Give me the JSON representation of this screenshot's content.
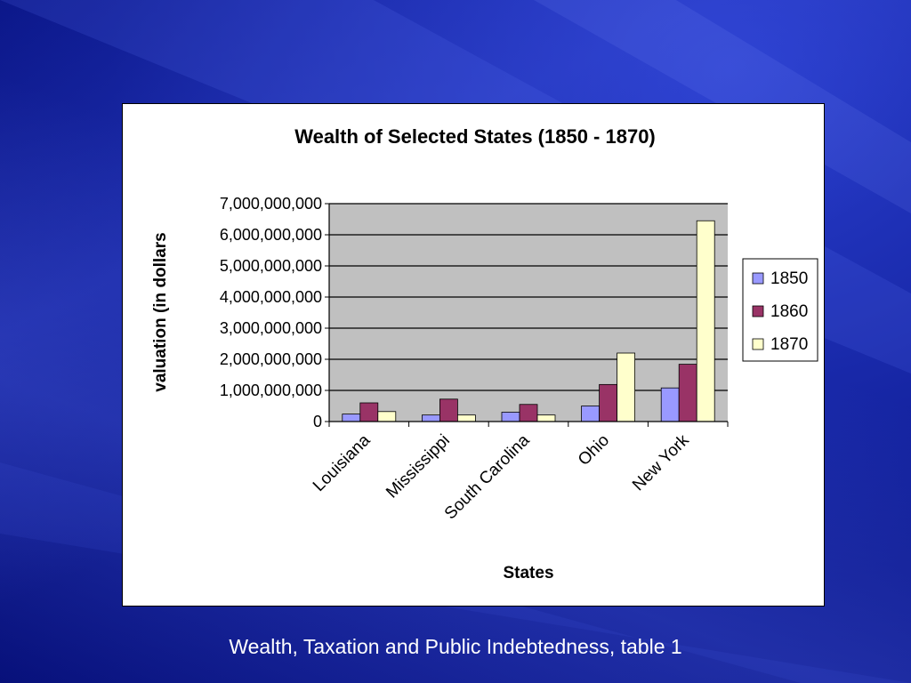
{
  "colors": {
    "background": "#0b1a8c",
    "plot_area": "#c0c0c0",
    "series_1850": "#9999ff",
    "series_1860": "#993366",
    "series_1870": "#ffffcc"
  },
  "caption": "Wealth, Taxation and Public Indebtedness, table 1",
  "chart_data": {
    "type": "bar",
    "title": "Wealth of Selected States (1850 - 1870)",
    "xlabel": "States",
    "ylabel": "valuation (in dollars",
    "categories": [
      "Louisiana",
      "Mississippi",
      "South Carolina",
      "Ohio",
      "New York"
    ],
    "series": [
      {
        "name": "1850",
        "color": "#9999ff",
        "values": [
          240000000,
          210000000,
          300000000,
          500000000,
          1080000000
        ]
      },
      {
        "name": "1860",
        "color": "#993366",
        "values": [
          600000000,
          720000000,
          550000000,
          1190000000,
          1840000000
        ]
      },
      {
        "name": "1870",
        "color": "#ffffcc",
        "values": [
          320000000,
          210000000,
          210000000,
          2200000000,
          6450000000
        ]
      }
    ],
    "ylim": [
      0,
      7000000000
    ],
    "yticks": [
      "0",
      "1,000,000,000",
      "2,000,000,000",
      "3,000,000,000",
      "4,000,000,000",
      "5,000,000,000",
      "6,000,000,000",
      "7,000,000,000"
    ],
    "grid": true,
    "legend_position": "right"
  }
}
